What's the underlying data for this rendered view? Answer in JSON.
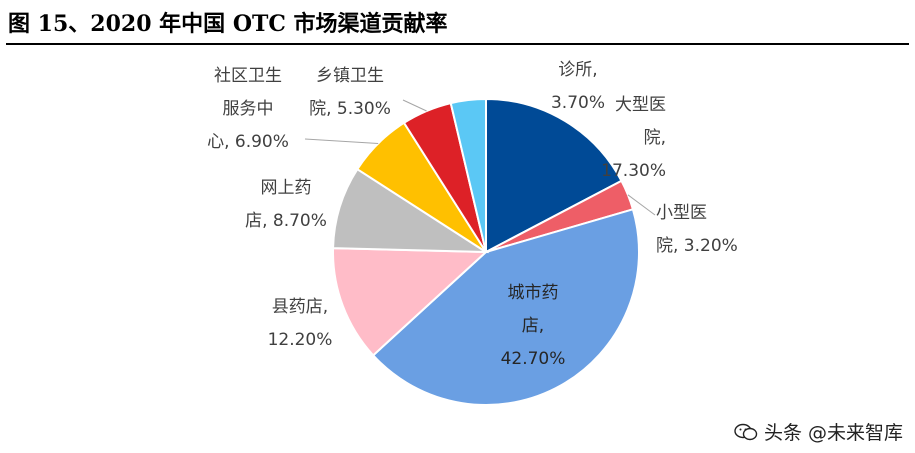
{
  "header": {
    "title": "图 15、2020 年中国 OTC 市场渠道贡献率"
  },
  "watermark": {
    "text": "头条 @未来智库",
    "icon": "wechat-icon"
  },
  "chart_data": {
    "type": "pie",
    "title": "",
    "start_angle_deg": 0,
    "direction": "clockwise",
    "slices": [
      {
        "lines": [
          "大型医",
          "院,",
          "17.30%"
        ],
        "value": 17.3,
        "color": "#004A96",
        "label_color": "#404040",
        "leader": false
      },
      {
        "lines": [
          "小型医",
          "院, 3.20%"
        ],
        "value": 3.2,
        "color": "#EE5E67",
        "label_color": "#404040",
        "leader": true
      },
      {
        "lines": [
          "城市药",
          "店,",
          "42.70%"
        ],
        "value": 42.7,
        "color": "#6A9FE3",
        "label_color": "#262626",
        "leader": false,
        "inside": true
      },
      {
        "lines": [
          "县药店,",
          "12.20%"
        ],
        "value": 12.2,
        "color": "#FFBCC8",
        "label_color": "#404040",
        "leader": false
      },
      {
        "lines": [
          "网上药",
          "店, 8.70%"
        ],
        "value": 8.7,
        "color": "#BFBFBF",
        "label_color": "#404040",
        "leader": false
      },
      {
        "lines": [
          "社区卫生",
          "服务中",
          "心, 6.90%"
        ],
        "value": 6.9,
        "color": "#FFC000",
        "label_color": "#404040",
        "leader": true
      },
      {
        "lines": [
          "乡镇卫生",
          "院, 5.30%"
        ],
        "value": 5.3,
        "color": "#DD2127",
        "label_color": "#404040",
        "leader": true
      },
      {
        "lines": [
          "诊所,",
          "3.70%"
        ],
        "value": 3.7,
        "color": "#5BC8F5",
        "label_color": "#404040",
        "leader": false
      }
    ]
  }
}
